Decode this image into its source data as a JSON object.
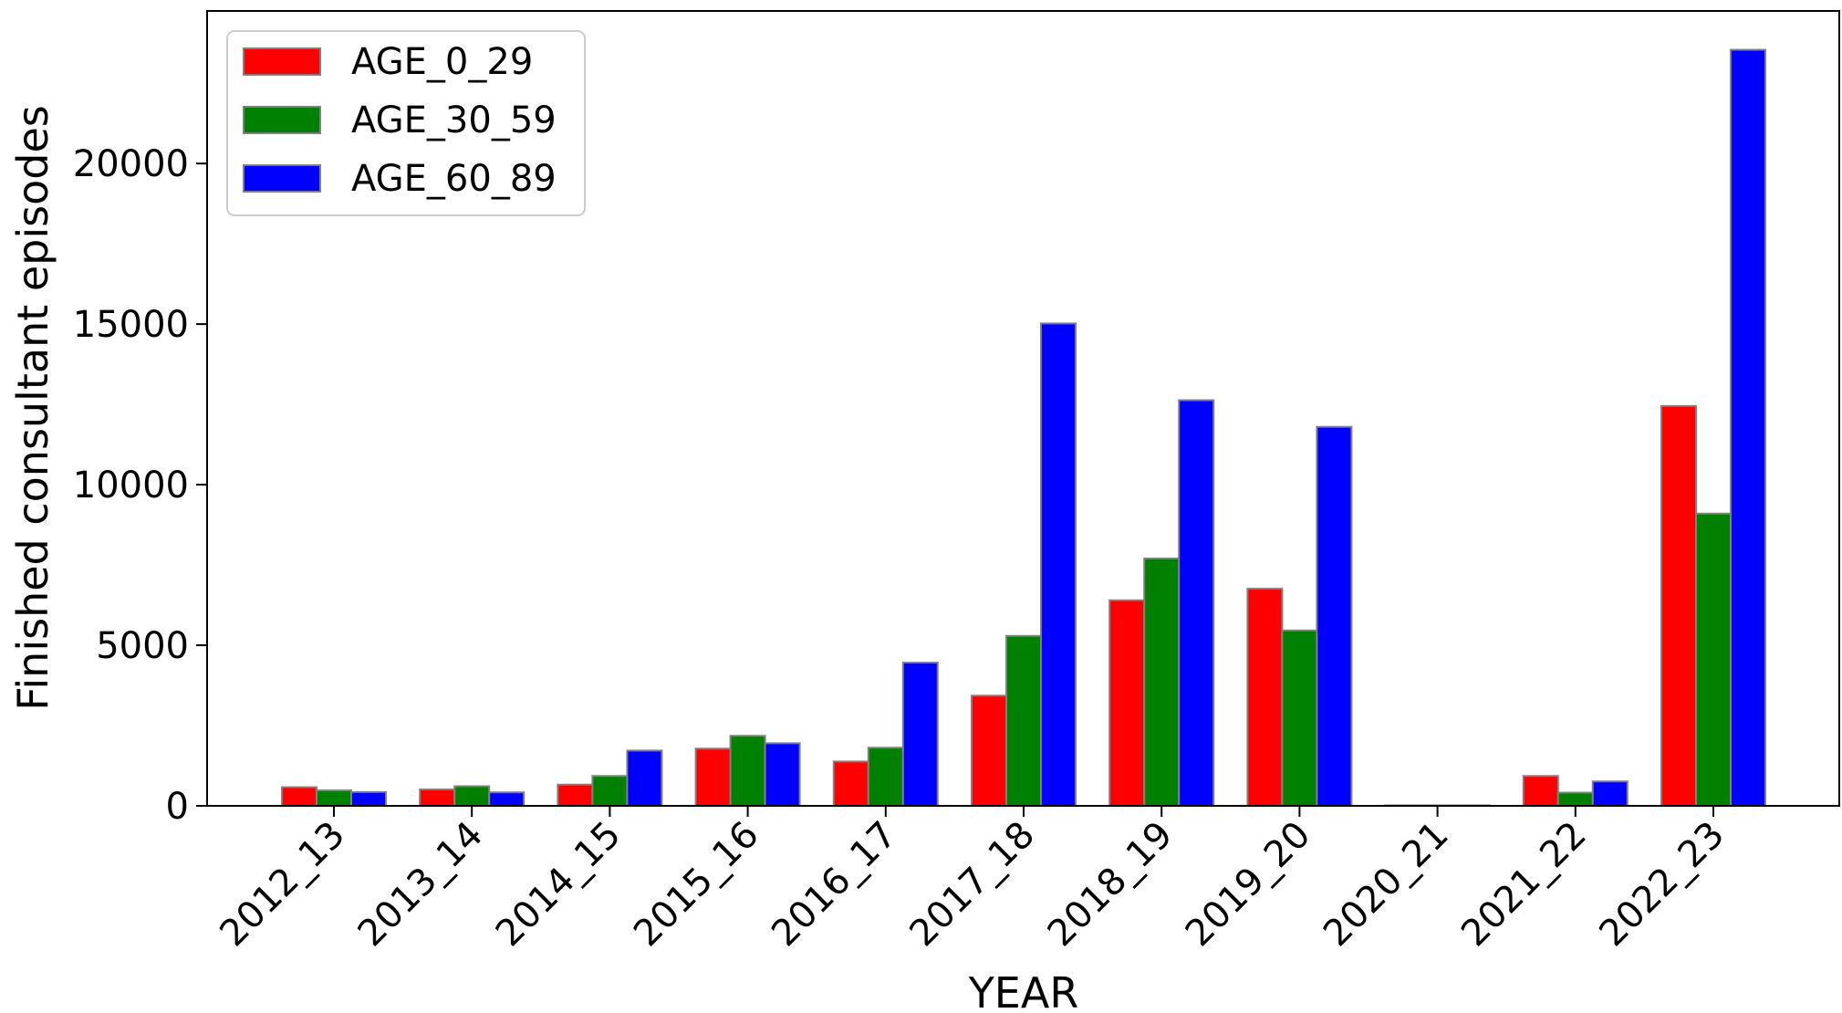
{
  "chart_data": {
    "type": "bar",
    "title": "",
    "xlabel": "YEAR",
    "ylabel": "Finished consultant episodes",
    "categories": [
      "2012_13",
      "2013_14",
      "2014_15",
      "2015_16",
      "2016_17",
      "2017_18",
      "2018_19",
      "2019_20",
      "2020_21",
      "2021_22",
      "2022_23"
    ],
    "series": [
      {
        "name": "AGE_0_29",
        "color": "#ff0000",
        "values": [
          580,
          510,
          660,
          1780,
          1380,
          3430,
          6400,
          6760,
          15,
          930,
          12450
        ]
      },
      {
        "name": "AGE_30_59",
        "color": "#008000",
        "values": [
          480,
          610,
          930,
          2180,
          1810,
          5290,
          7700,
          5460,
          15,
          410,
          9100
        ]
      },
      {
        "name": "AGE_60_89",
        "color": "#0000ff",
        "values": [
          430,
          420,
          1720,
          1950,
          4460,
          15020,
          12630,
          11800,
          15,
          760,
          23540
        ]
      }
    ],
    "ylim": [
      0,
      24750
    ],
    "yticks": [
      0,
      5000,
      10000,
      15000,
      20000
    ],
    "grid": false,
    "legend_position": "top-left"
  }
}
